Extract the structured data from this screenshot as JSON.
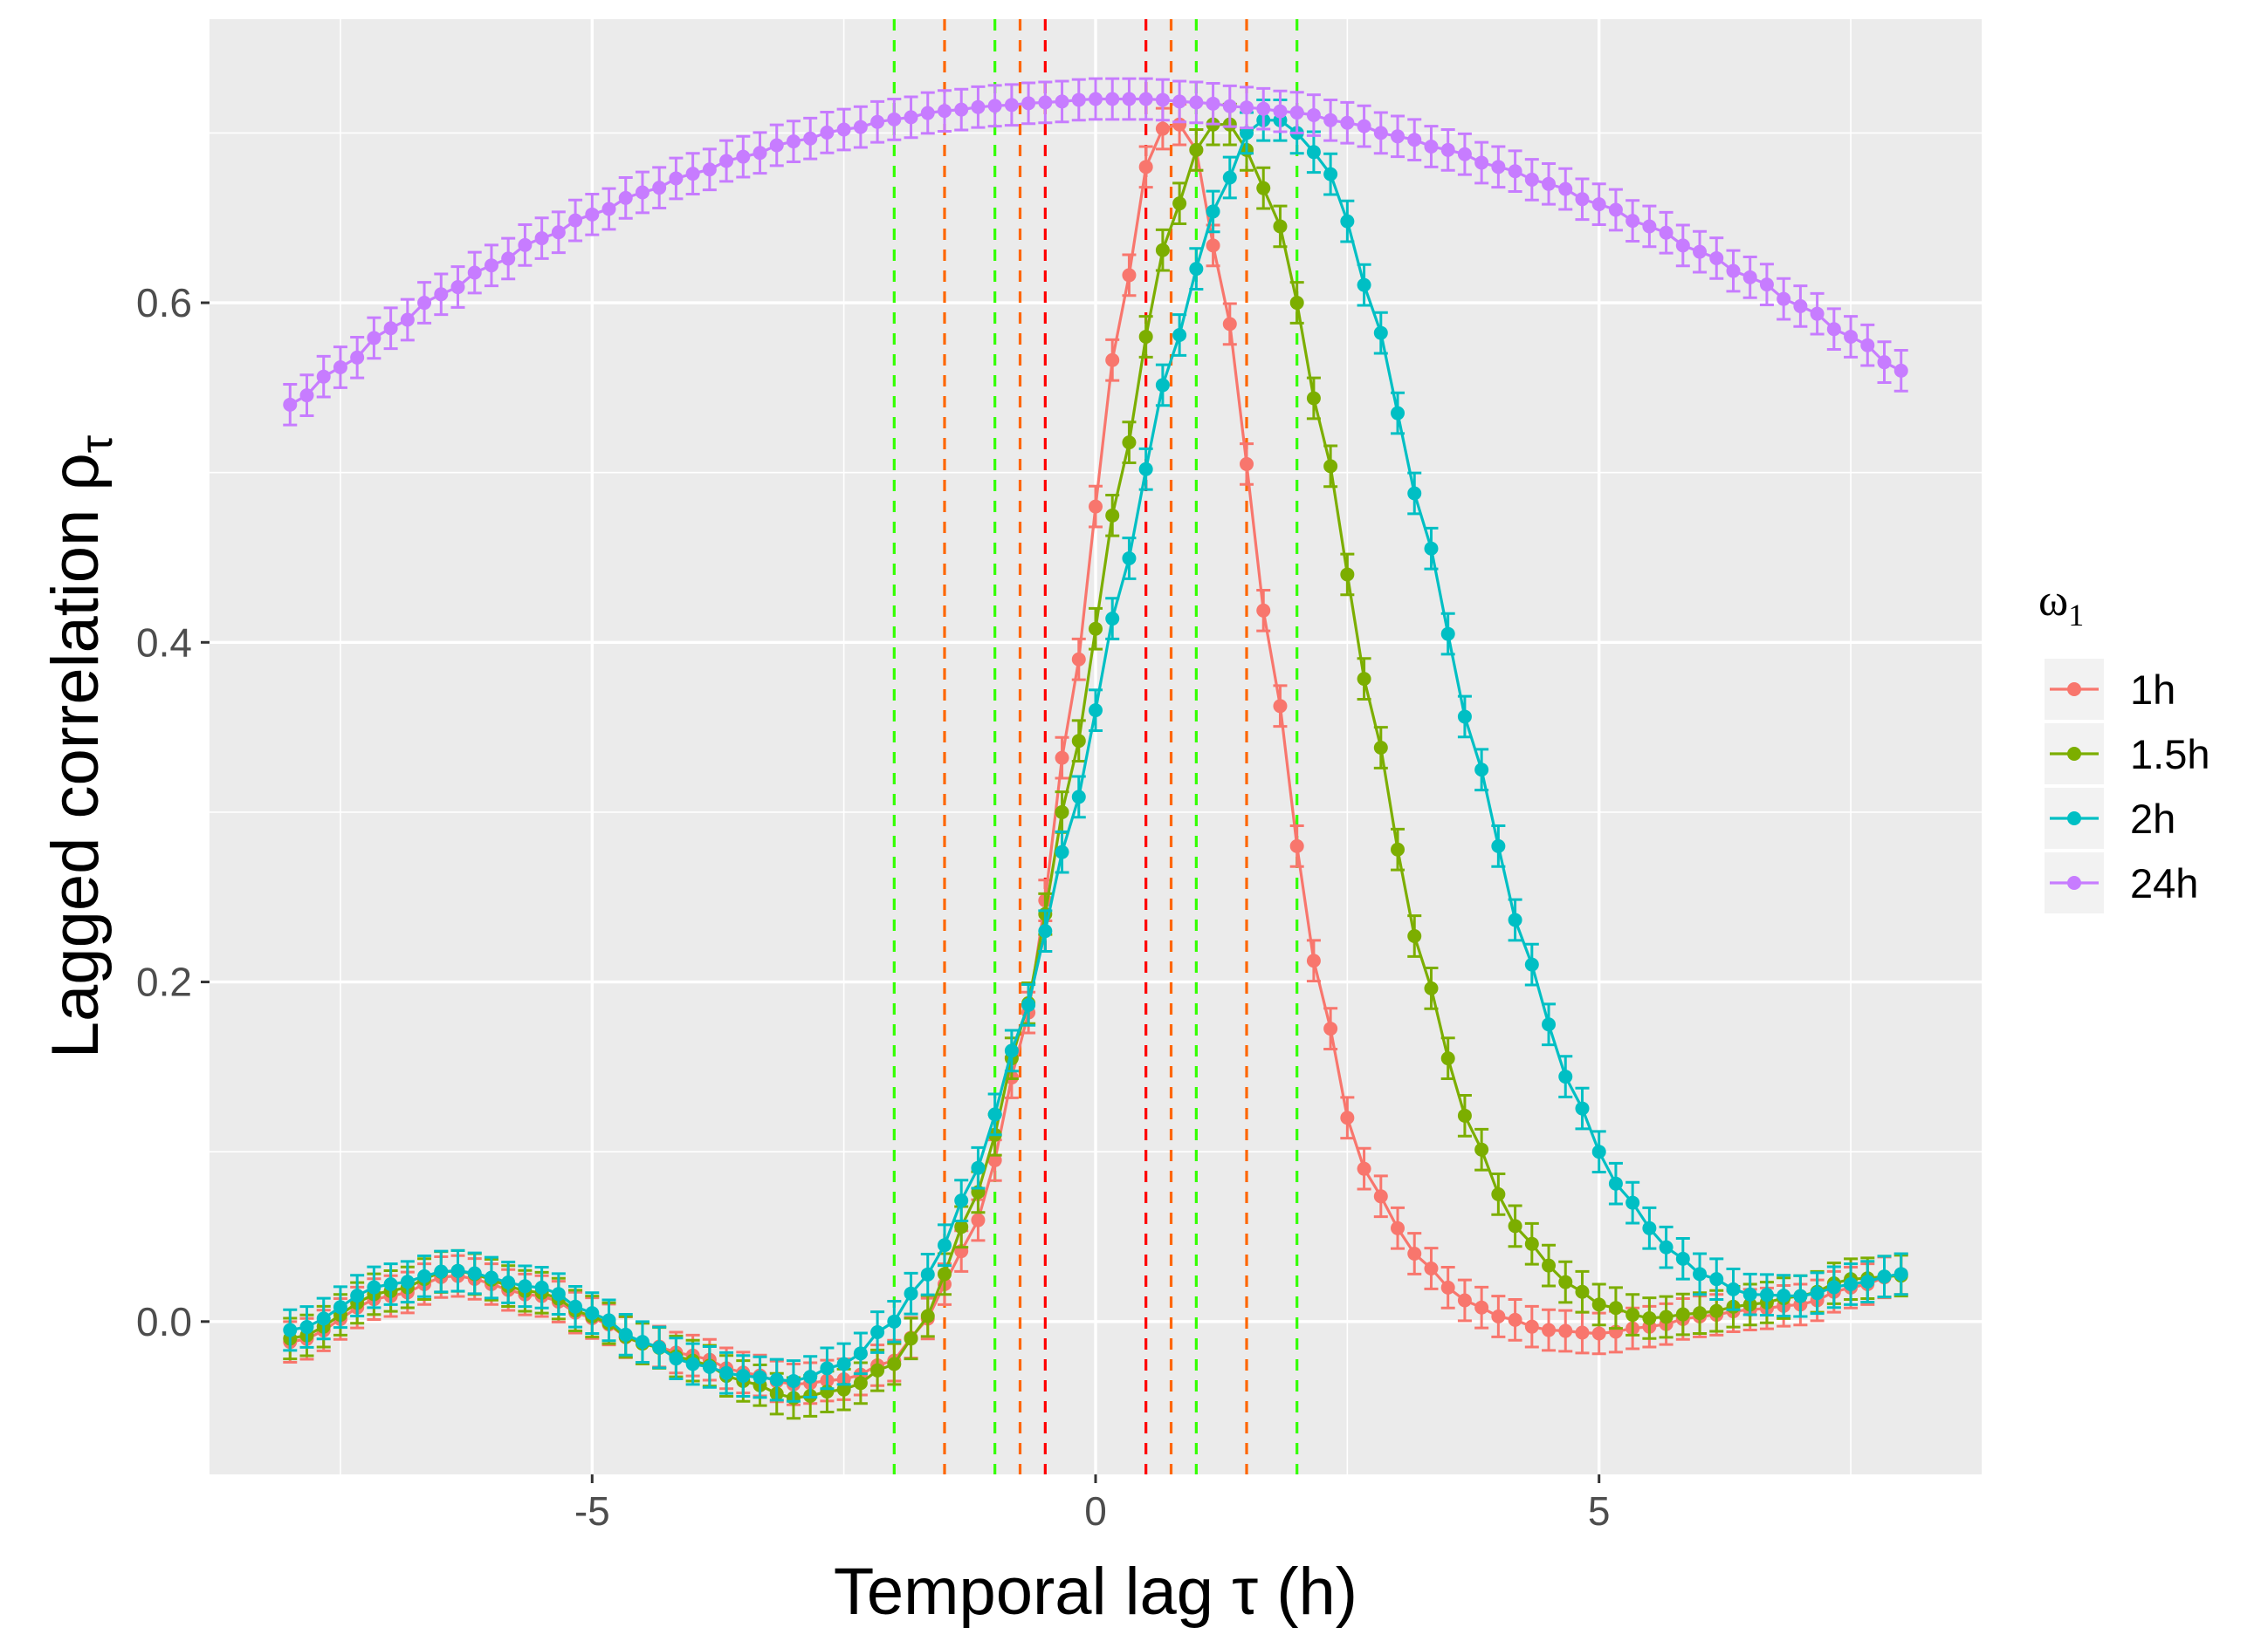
{
  "chart_data": {
    "type": "line",
    "xlabel": "Temporal lag τ (h)",
    "ylabel_main": "Lagged correlation ρ",
    "ylabel_sub": "τ",
    "xlim": [
      -8.8,
      8.8
    ],
    "ylim": [
      -0.09,
      0.767
    ],
    "x_ticks": [
      -5,
      0,
      5
    ],
    "y_ticks": [
      0.0,
      0.2,
      0.4,
      0.6
    ],
    "y_tick_labels": [
      "0.0",
      "0.2",
      "0.4",
      "0.6"
    ],
    "x_tick_labels": [
      "-5",
      "0",
      "5"
    ],
    "grid": true,
    "legend": {
      "title_main": "ω",
      "title_sub": "1",
      "position": "right",
      "entries": [
        "1h",
        "1.5h",
        "2h",
        "24h"
      ]
    },
    "colors": {
      "1h": "#F8766D",
      "1.5h": "#7CAE00",
      "2h": "#00BFC4",
      "24h": "#C77CFF",
      "panel": "#EBEBEB",
      "grid": "#FFFFFF"
    },
    "vlines": [
      {
        "x": -2.0,
        "color": "#33FF00"
      },
      {
        "x": -1.5,
        "color": "#FF6600"
      },
      {
        "x": -1.0,
        "color": "#33FF00"
      },
      {
        "x": -0.75,
        "color": "#FF6600"
      },
      {
        "x": -0.5,
        "color": "#FF0000"
      },
      {
        "x": 0.5,
        "color": "#FF0000"
      },
      {
        "x": 0.75,
        "color": "#FF6600"
      },
      {
        "x": 1.0,
        "color": "#33FF00"
      },
      {
        "x": 1.5,
        "color": "#FF6600"
      },
      {
        "x": 2.0,
        "color": "#33FF00"
      }
    ],
    "error_halfwidth": 0.012,
    "series": [
      {
        "name": "1h",
        "points": [
          [
            -8,
            -0.012
          ],
          [
            -7,
            0.015
          ],
          [
            -6.4,
            0.027
          ],
          [
            -5.5,
            0.015
          ],
          [
            -5,
            0.002
          ],
          [
            -4.5,
            -0.013
          ],
          [
            -4,
            -0.02
          ],
          [
            -3.5,
            -0.03
          ],
          [
            -3,
            -0.037
          ],
          [
            -2.5,
            -0.034
          ],
          [
            -2,
            -0.023
          ],
          [
            -1.75,
            -0.005
          ],
          [
            -1.5,
            0.022
          ],
          [
            -1.25,
            0.048
          ],
          [
            -1,
            0.095
          ],
          [
            -0.75,
            0.16
          ],
          [
            -0.5,
            0.248
          ],
          [
            -0.25,
            0.36
          ],
          [
            0,
            0.48
          ],
          [
            0.25,
            0.595
          ],
          [
            0.5,
            0.68
          ],
          [
            0.75,
            0.71
          ],
          [
            1,
            0.69
          ],
          [
            1.25,
            0.615
          ],
          [
            1.5,
            0.505
          ],
          [
            1.75,
            0.39
          ],
          [
            2,
            0.28
          ],
          [
            2.25,
            0.19
          ],
          [
            2.5,
            0.12
          ],
          [
            2.75,
            0.08
          ],
          [
            3,
            0.055
          ],
          [
            3.25,
            0.035
          ],
          [
            3.5,
            0.02
          ],
          [
            3.75,
            0.01
          ],
          [
            4,
            0.003
          ],
          [
            4.5,
            -0.005
          ],
          [
            5,
            -0.007
          ],
          [
            5.5,
            -0.003
          ],
          [
            6,
            0.003
          ],
          [
            6.5,
            0.007
          ],
          [
            7,
            0.01
          ],
          [
            7.5,
            0.02
          ],
          [
            8,
            0.028
          ]
        ]
      },
      {
        "name": "1.5h",
        "points": [
          [
            -8,
            -0.01
          ],
          [
            -7,
            0.018
          ],
          [
            -6.4,
            0.03
          ],
          [
            -5.5,
            0.017
          ],
          [
            -5,
            0.003
          ],
          [
            -4.5,
            -0.013
          ],
          [
            -4,
            -0.023
          ],
          [
            -3.5,
            -0.035
          ],
          [
            -3,
            -0.045
          ],
          [
            -2.5,
            -0.04
          ],
          [
            -2,
            -0.025
          ],
          [
            -1.75,
            -0.005
          ],
          [
            -1.5,
            0.028
          ],
          [
            -1.25,
            0.065
          ],
          [
            -1,
            0.11
          ],
          [
            -0.75,
            0.17
          ],
          [
            -0.5,
            0.24
          ],
          [
            -0.25,
            0.32
          ],
          [
            0,
            0.408
          ],
          [
            0.25,
            0.497
          ],
          [
            0.5,
            0.58
          ],
          [
            0.75,
            0.648
          ],
          [
            1,
            0.69
          ],
          [
            1.25,
            0.71
          ],
          [
            1.5,
            0.69
          ],
          [
            1.75,
            0.66
          ],
          [
            2,
            0.6
          ],
          [
            2.25,
            0.525
          ],
          [
            2.5,
            0.44
          ],
          [
            2.75,
            0.358
          ],
          [
            3,
            0.278
          ],
          [
            3.25,
            0.21
          ],
          [
            3.5,
            0.155
          ],
          [
            3.75,
            0.11
          ],
          [
            4,
            0.075
          ],
          [
            4.25,
            0.05
          ],
          [
            4.5,
            0.033
          ],
          [
            4.75,
            0.02
          ],
          [
            5,
            0.01
          ],
          [
            5.5,
            0.002
          ],
          [
            6,
            0.005
          ],
          [
            6.5,
            0.01
          ],
          [
            7,
            0.015
          ],
          [
            7.5,
            0.025
          ],
          [
            8,
            0.027
          ]
        ]
      },
      {
        "name": "2h",
        "points": [
          [
            -8,
            -0.005
          ],
          [
            -7,
            0.022
          ],
          [
            -6.4,
            0.03
          ],
          [
            -5.5,
            0.02
          ],
          [
            -5,
            0.005
          ],
          [
            -4.5,
            -0.012
          ],
          [
            -4,
            -0.025
          ],
          [
            -3.5,
            -0.032
          ],
          [
            -3,
            -0.035
          ],
          [
            -2.5,
            -0.025
          ],
          [
            -2,
            0.0
          ],
          [
            -1.75,
            0.022
          ],
          [
            -1.5,
            0.045
          ],
          [
            -1.25,
            0.08
          ],
          [
            -1,
            0.122
          ],
          [
            -0.75,
            0.172
          ],
          [
            -0.5,
            0.23
          ],
          [
            -0.25,
            0.292
          ],
          [
            0,
            0.36
          ],
          [
            0.25,
            0.432
          ],
          [
            0.5,
            0.502
          ],
          [
            0.75,
            0.568
          ],
          [
            1,
            0.62
          ],
          [
            1.25,
            0.665
          ],
          [
            1.5,
            0.7
          ],
          [
            1.75,
            0.71
          ],
          [
            2,
            0.7
          ],
          [
            2.25,
            0.685
          ],
          [
            2.5,
            0.648
          ],
          [
            2.75,
            0.598
          ],
          [
            3,
            0.535
          ],
          [
            3.25,
            0.472
          ],
          [
            3.5,
            0.405
          ],
          [
            3.75,
            0.34
          ],
          [
            4,
            0.28
          ],
          [
            4.25,
            0.222
          ],
          [
            4.5,
            0.175
          ],
          [
            4.75,
            0.134
          ],
          [
            5,
            0.1
          ],
          [
            5.25,
            0.075
          ],
          [
            5.5,
            0.055
          ],
          [
            5.75,
            0.04
          ],
          [
            6,
            0.028
          ],
          [
            6.5,
            0.016
          ],
          [
            7,
            0.015
          ],
          [
            7.5,
            0.022
          ],
          [
            8,
            0.028
          ]
        ]
      },
      {
        "name": "24h",
        "points": [
          [
            -8,
            0.54
          ],
          [
            -7.5,
            0.562
          ],
          [
            -7,
            0.585
          ],
          [
            -6.5,
            0.605
          ],
          [
            -6,
            0.622
          ],
          [
            -5.5,
            0.638
          ],
          [
            -5,
            0.652
          ],
          [
            -4.5,
            0.665
          ],
          [
            -4,
            0.676
          ],
          [
            -3.5,
            0.686
          ],
          [
            -3,
            0.695
          ],
          [
            -2.5,
            0.702
          ],
          [
            -2,
            0.708
          ],
          [
            -1.5,
            0.713
          ],
          [
            -1,
            0.716
          ],
          [
            -0.5,
            0.718
          ],
          [
            0,
            0.72
          ],
          [
            0.5,
            0.72
          ],
          [
            1,
            0.718
          ],
          [
            1.5,
            0.715
          ],
          [
            2,
            0.712
          ],
          [
            2.5,
            0.706
          ],
          [
            3,
            0.698
          ],
          [
            3.5,
            0.69
          ],
          [
            4,
            0.68
          ],
          [
            4.5,
            0.67
          ],
          [
            5,
            0.658
          ],
          [
            5.5,
            0.645
          ],
          [
            6,
            0.63
          ],
          [
            6.5,
            0.615
          ],
          [
            7,
            0.598
          ],
          [
            7.5,
            0.58
          ],
          [
            8,
            0.56
          ]
        ]
      }
    ]
  }
}
